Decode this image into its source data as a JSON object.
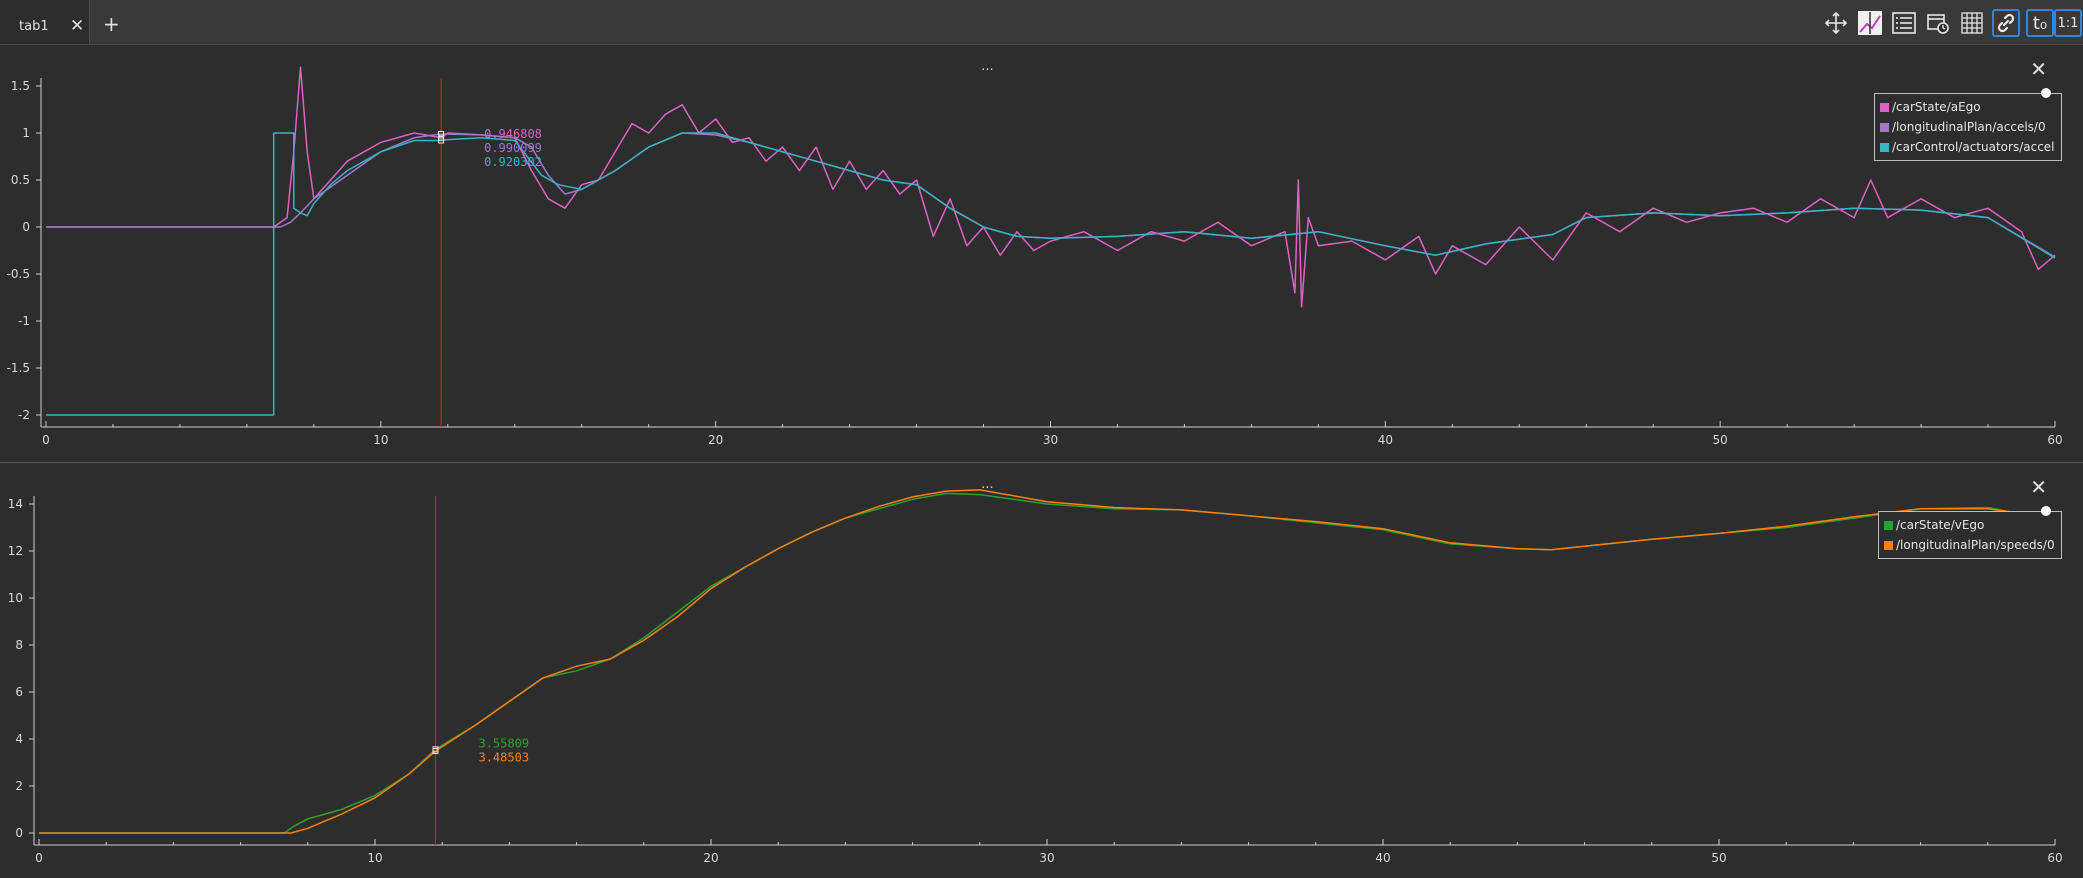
{
  "tabs": [
    {
      "label": "tab1"
    }
  ],
  "tab_close_glyph": "✕",
  "tab_add_glyph": "+",
  "toolbar": [
    {
      "icon": "move-icon"
    },
    {
      "icon": "zoom-to-fit-icon"
    },
    {
      "icon": "legend-list-icon"
    },
    {
      "icon": "time-calendar-icon"
    },
    {
      "icon": "grid-icon"
    },
    {
      "icon": "link-icon",
      "active": true
    },
    {
      "icon": "time-offset-icon",
      "label": "t₀",
      "active": true
    },
    {
      "icon": "ratio-icon",
      "label": "1:1",
      "active": true
    }
  ],
  "plots": [
    {
      "title": "...",
      "close_glyph": "✕",
      "chart_data": {
        "type": "line",
        "xlim": [
          0,
          60
        ],
        "ylim": [
          -2,
          1.5
        ],
        "x_ticks": [
          0,
          10,
          20,
          30,
          40,
          50,
          60
        ],
        "y_ticks": [
          -2,
          -1.5,
          -1,
          -0.5,
          0,
          0.5,
          1,
          1.5
        ],
        "cursor_x": 11.8,
        "series": [
          {
            "name": "/carState/aEgo",
            "color": "#e060c8",
            "cursor_value": "0.946808",
            "x": [
              0,
              6.8,
              7.2,
              7.4,
              7.6,
              7.8,
              8,
              8.5,
              9,
              10,
              11,
              11.8,
              12,
              13,
              14,
              14.5,
              15,
              15.5,
              16,
              16.5,
              17,
              17.5,
              18,
              18.5,
              19,
              19.5,
              20,
              20.5,
              21,
              21.5,
              22,
              22.5,
              23,
              23.5,
              24,
              24.5,
              25,
              25.5,
              26,
              26.5,
              27,
              27.5,
              28,
              28.5,
              29,
              29.5,
              30,
              31,
              32,
              33,
              34,
              35,
              36,
              37,
              37.3,
              37.4,
              37.5,
              37.7,
              38,
              39,
              40,
              41,
              41.5,
              42,
              43,
              44,
              45,
              46,
              47,
              48,
              49,
              50,
              51,
              52,
              53,
              54,
              54.5,
              55,
              56,
              57,
              58,
              59,
              59.5,
              60
            ],
            "y": [
              0,
              0,
              0.1,
              0.8,
              1.7,
              0.8,
              0.3,
              0.5,
              0.7,
              0.9,
              1.0,
              0.95,
              1.0,
              0.98,
              0.95,
              0.6,
              0.3,
              0.2,
              0.45,
              0.5,
              0.8,
              1.1,
              1.0,
              1.2,
              1.3,
              1.0,
              1.15,
              0.9,
              0.95,
              0.7,
              0.85,
              0.6,
              0.85,
              0.4,
              0.7,
              0.4,
              0.6,
              0.35,
              0.5,
              -0.1,
              0.3,
              -0.2,
              0.0,
              -0.3,
              -0.05,
              -0.25,
              -0.15,
              -0.05,
              -0.25,
              -0.05,
              -0.15,
              0.05,
              -0.2,
              -0.05,
              -0.7,
              0.5,
              -0.85,
              0.1,
              -0.2,
              -0.15,
              -0.35,
              -0.1,
              -0.5,
              -0.2,
              -0.4,
              0.0,
              -0.35,
              0.15,
              -0.05,
              0.2,
              0.05,
              0.15,
              0.2,
              0.05,
              0.3,
              0.1,
              0.5,
              0.1,
              0.3,
              0.1,
              0.2,
              -0.05,
              -0.45,
              -0.3
            ]
          },
          {
            "name": "/longitudinalPlan/accels/0",
            "color": "#a077d0",
            "cursor_value": "0.990099",
            "x": [
              0,
              7,
              7.3,
              7.6,
              8,
              9,
              10,
              11,
              11.8,
              13,
              14,
              14.5,
              15,
              15.5,
              16,
              17,
              18,
              19,
              20,
              21,
              22,
              23,
              24,
              25,
              26,
              27,
              28,
              29,
              30,
              32,
              34,
              36,
              38,
              40,
              41.5,
              43,
              45,
              46,
              48,
              50,
              52,
              54,
              56,
              58,
              60
            ],
            "y": [
              0,
              0,
              0.05,
              0.15,
              0.3,
              0.55,
              0.8,
              0.95,
              0.99,
              0.98,
              0.95,
              0.85,
              0.55,
              0.35,
              0.4,
              0.6,
              0.85,
              1.0,
              0.98,
              0.9,
              0.8,
              0.7,
              0.6,
              0.5,
              0.45,
              0.2,
              0.0,
              -0.1,
              -0.12,
              -0.1,
              -0.05,
              -0.12,
              -0.05,
              -0.2,
              -0.3,
              -0.18,
              -0.08,
              0.1,
              0.15,
              0.12,
              0.15,
              0.2,
              0.18,
              0.1,
              -0.32
            ]
          },
          {
            "name": "/carControl/actuators/accel",
            "color": "#36b3c4",
            "cursor_value": "0.920302",
            "x": [
              0,
              6.8,
              6.8,
              7.4,
              7.4,
              7.6,
              7.8,
              8,
              8.5,
              9,
              10,
              11,
              11.8,
              12,
              13,
              14,
              14.8,
              15.3,
              16,
              17,
              18,
              19,
              20,
              21,
              22,
              23,
              24,
              25,
              26,
              27,
              28,
              29,
              30,
              32,
              34,
              36,
              38,
              40,
              41.5,
              43,
              45,
              46,
              48,
              50,
              52,
              54,
              56,
              58,
              60
            ],
            "y": [
              -2,
              -2,
              1.0,
              1.0,
              0.2,
              0.15,
              0.12,
              0.25,
              0.45,
              0.6,
              0.8,
              0.92,
              0.92,
              0.93,
              0.95,
              0.92,
              0.55,
              0.45,
              0.4,
              0.6,
              0.85,
              1.0,
              1.0,
              0.9,
              0.8,
              0.7,
              0.6,
              0.5,
              0.45,
              0.2,
              0.0,
              -0.1,
              -0.12,
              -0.1,
              -0.05,
              -0.12,
              -0.05,
              -0.2,
              -0.3,
              -0.18,
              -0.08,
              0.1,
              0.15,
              0.12,
              0.15,
              0.2,
              0.18,
              0.1,
              -0.33
            ]
          }
        ]
      }
    },
    {
      "title": "...",
      "close_glyph": "✕",
      "chart_data": {
        "type": "line",
        "xlim": [
          0,
          60
        ],
        "ylim": [
          0,
          14
        ],
        "x_ticks": [
          0,
          10,
          20,
          30,
          40,
          50,
          60
        ],
        "y_ticks": [
          0,
          2,
          4,
          6,
          8,
          10,
          12,
          14
        ],
        "cursor_x": 11.8,
        "series": [
          {
            "name": "/carState/vEgo",
            "color": "#2ca02c",
            "cursor_value": "3.55809",
            "x": [
              0,
              7.3,
              7.6,
              8,
              9,
              10,
              11,
              11.8,
              13,
              14,
              15,
              16,
              17,
              18,
              19,
              20,
              21,
              22,
              23,
              24,
              25,
              26,
              27,
              28,
              29,
              30,
              32,
              34,
              36,
              38,
              40,
              42,
              44,
              45,
              46,
              48,
              50,
              52,
              54,
              56,
              58,
              60
            ],
            "y": [
              0,
              0,
              0.3,
              0.6,
              1.0,
              1.6,
              2.5,
              3.56,
              4.6,
              5.6,
              6.6,
              6.9,
              7.4,
              8.3,
              9.4,
              10.5,
              11.3,
              12.1,
              12.8,
              13.4,
              13.8,
              14.2,
              14.45,
              14.4,
              14.2,
              14.0,
              13.8,
              13.75,
              13.5,
              13.2,
              12.9,
              12.3,
              12.1,
              12.05,
              12.2,
              12.5,
              12.75,
              13.0,
              13.4,
              13.8,
              13.85,
              13.3
            ]
          },
          {
            "name": "/longitudinalPlan/speeds/0",
            "color": "#ff7f0e",
            "cursor_value": "3.48503",
            "x": [
              0,
              7.5,
              8,
              9,
              10,
              11,
              11.8,
              13,
              14,
              15,
              16,
              17,
              18,
              19,
              20,
              21,
              22,
              23,
              24,
              25,
              26,
              27,
              28,
              29,
              30,
              32,
              34,
              36,
              38,
              40,
              42,
              44,
              45,
              46,
              48,
              50,
              52,
              54,
              56,
              58,
              60
            ],
            "y": [
              0,
              0,
              0.2,
              0.8,
              1.5,
              2.5,
              3.49,
              4.6,
              5.6,
              6.6,
              7.1,
              7.4,
              8.2,
              9.2,
              10.4,
              11.3,
              12.1,
              12.8,
              13.4,
              13.9,
              14.3,
              14.55,
              14.6,
              14.35,
              14.1,
              13.85,
              13.75,
              13.5,
              13.25,
              12.95,
              12.35,
              12.1,
              12.05,
              12.2,
              12.5,
              12.75,
              13.05,
              13.45,
              13.8,
              13.8,
              13.4
            ]
          }
        ]
      }
    }
  ]
}
